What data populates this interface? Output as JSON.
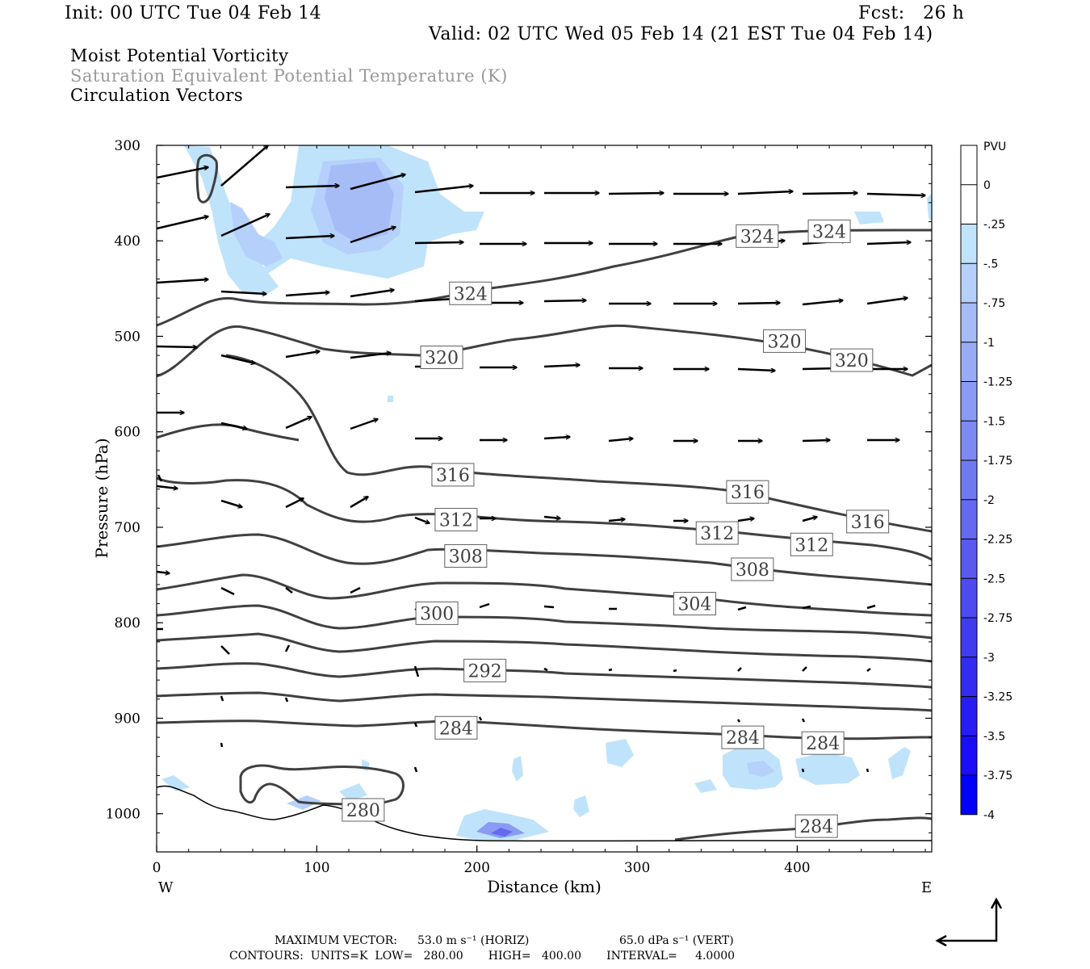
{
  "header": {
    "init": "Init: 00 UTC Tue 04 Feb 14",
    "fcst": "Fcst:   26 h",
    "valid": "Valid: 02 UTC Wed 05 Feb 14 (21 EST Tue 04 Feb 14)",
    "line1": "Moist Potential Vorticity",
    "line2": "Saturation Equivalent Potential Temperature (K)",
    "line3": "Circulation Vectors"
  },
  "footer": {
    "max_vector_label": "MAXIMUM VECTOR:",
    "max_vector_horiz": "53.0 m s⁻¹ (HORIZ)",
    "max_vector_vert": "65.0 dPa s⁻¹ (VERT)",
    "contours": "CONTOURS:  UNITS=K  LOW=   280.00       HIGH=   400.00       INTERVAL=     4.0000"
  },
  "chart_data": {
    "type": "contour",
    "xlabel": "Distance (km)",
    "ylabel": "Pressure (hPa)",
    "x_end_labels": [
      "W",
      "E"
    ],
    "xlim": [
      0,
      484
    ],
    "ylim": [
      1040,
      300
    ],
    "x_ticks": [
      0,
      100,
      200,
      300,
      400
    ],
    "y_ticks": [
      300,
      400,
      500,
      600,
      700,
      800,
      900,
      1000
    ],
    "grid": false,
    "colorbar": {
      "title": "PVU",
      "labels": [
        "0",
        "-.25",
        "-.5",
        "-.75",
        "-1",
        "-1.25",
        "-1.5",
        "-1.75",
        "-2",
        "-2.25",
        "-2.5",
        "-2.75",
        "-3",
        "-3.25",
        "-3.5",
        "-3.75",
        "-4"
      ],
      "colors": [
        "#ffffff",
        "#ffffff",
        "#bfe3fb",
        "#b5d0fa",
        "#a6bcf7",
        "#98abf5",
        "#8a9bf3",
        "#7d8af1",
        "#707af0",
        "#6469ef",
        "#5859ef",
        "#4c4af0",
        "#3f3bf1",
        "#332bf2",
        "#261cf4",
        "#190ef6",
        "#0000ff"
      ]
    },
    "contour_labels": [
      {
        "value": "324",
        "x": 196,
        "p": 455
      },
      {
        "value": "324",
        "x": 375,
        "p": 395
      },
      {
        "value": "324",
        "x": 420,
        "p": 390
      },
      {
        "value": "320",
        "x": 178,
        "p": 522
      },
      {
        "value": "320",
        "x": 392,
        "p": 505
      },
      {
        "value": "320",
        "x": 434,
        "p": 525
      },
      {
        "value": "316",
        "x": 185,
        "p": 645
      },
      {
        "value": "316",
        "x": 369,
        "p": 663
      },
      {
        "value": "316",
        "x": 444,
        "p": 694
      },
      {
        "value": "312",
        "x": 187,
        "p": 692
      },
      {
        "value": "312",
        "x": 350,
        "p": 706
      },
      {
        "value": "312",
        "x": 409,
        "p": 718
      },
      {
        "value": "308",
        "x": 193,
        "p": 730
      },
      {
        "value": "308",
        "x": 372,
        "p": 744
      },
      {
        "value": "304",
        "x": 336,
        "p": 780
      },
      {
        "value": "300",
        "x": 175,
        "p": 790
      },
      {
        "value": "292",
        "x": 205,
        "p": 850
      },
      {
        "value": "284",
        "x": 187,
        "p": 910
      },
      {
        "value": "284",
        "x": 366,
        "p": 920
      },
      {
        "value": "284",
        "x": 416,
        "p": 926
      },
      {
        "value": "280",
        "x": 129,
        "p": 996
      },
      {
        "value": "284",
        "x": 412,
        "p": 1013
      }
    ]
  }
}
